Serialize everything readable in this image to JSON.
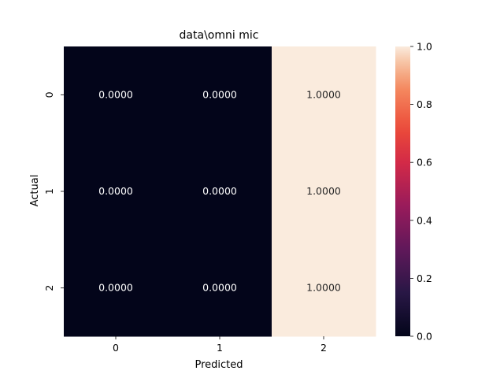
{
  "chart_data": {
    "type": "heatmap",
    "title": "data\\omni mic",
    "xlabel": "Predicted",
    "ylabel": "Actual",
    "x_categories": [
      "0",
      "1",
      "2"
    ],
    "y_categories": [
      "0",
      "1",
      "2"
    ],
    "values": [
      [
        0.0,
        0.0,
        1.0
      ],
      [
        0.0,
        0.0,
        1.0
      ],
      [
        0.0,
        0.0,
        1.0
      ]
    ],
    "cell_labels": [
      [
        "0.0000",
        "0.0000",
        "1.0000"
      ],
      [
        "0.0000",
        "0.0000",
        "1.0000"
      ],
      [
        "0.0000",
        "0.0000",
        "1.0000"
      ]
    ],
    "colorbar": {
      "range": [
        0.0,
        1.0
      ],
      "ticks": [
        0.0,
        0.2,
        0.4,
        0.6,
        0.8,
        1.0
      ],
      "tick_labels": [
        "0.0",
        "0.2",
        "0.4",
        "0.6",
        "0.8",
        "1.0"
      ],
      "colormap": "rocket",
      "low_color": "#03051a",
      "high_color": "#faebdd"
    },
    "label_colors": {
      "on_dark": "#ffffff",
      "on_light": "#262626"
    },
    "grid": false,
    "legend": "colorbar-right"
  }
}
